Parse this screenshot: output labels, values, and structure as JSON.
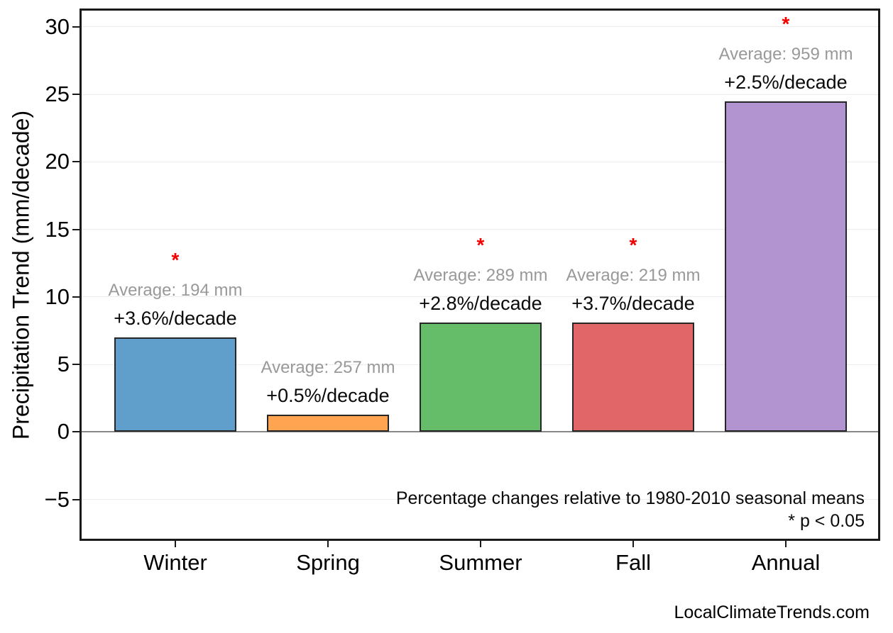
{
  "chart_data": {
    "type": "bar",
    "title": "",
    "xlabel": "",
    "ylabel": "Precipitation Trend (mm/decade)",
    "categories": [
      "Winter",
      "Spring",
      "Summer",
      "Fall",
      "Annual"
    ],
    "values": [
      7.0,
      1.3,
      8.1,
      8.1,
      24.5
    ],
    "bar_colors": [
      "#609ecb",
      "#ffa552",
      "#66bd69",
      "#e06667",
      "#b295d0"
    ],
    "bar_edge_color": "#262626",
    "averages_mm": [
      194,
      257,
      289,
      219,
      959
    ],
    "avg_labels": [
      "Average: 194 mm",
      "Average: 257 mm",
      "Average: 289 mm",
      "Average: 219 mm",
      "Average: 959 mm"
    ],
    "pct_labels": [
      "+3.6%/decade",
      "+0.5%/decade",
      "+2.8%/decade",
      "+3.7%/decade",
      "+2.5%/decade"
    ],
    "significant": [
      true,
      false,
      true,
      true,
      true
    ],
    "significance_marker": "*",
    "significance_color": "#f10000",
    "yticks": [
      -5,
      0,
      5,
      10,
      15,
      20,
      25,
      30
    ],
    "ylim": [
      -7.9,
      31.2
    ],
    "grid": true,
    "legend": "none",
    "zero_line_color": "#888888",
    "annotations": [
      {
        "text": "Percentage changes relative to 1980-2010 seasonal means"
      },
      {
        "text": "* p < 0.05"
      }
    ]
  },
  "footer": {
    "watermark": "LocalClimateTrends.com"
  }
}
